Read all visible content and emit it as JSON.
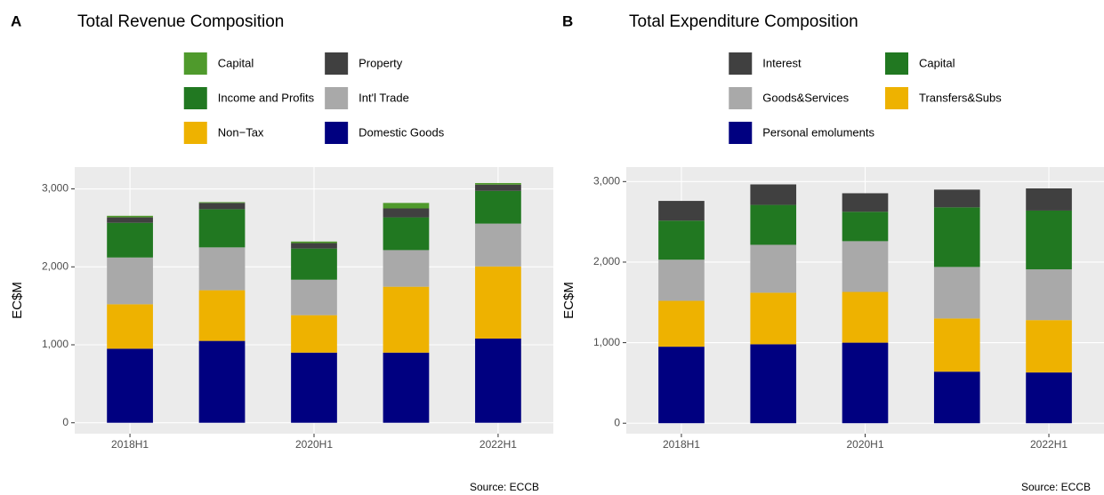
{
  "chart_data": [
    {
      "type": "bar",
      "stacked": true,
      "tag": "A",
      "title": "Total Revenue Composition",
      "ylabel": "EC$M",
      "caption": "Source: ECCB",
      "categories": [
        "2018H1",
        null,
        "2020H1",
        null,
        "2022H1"
      ],
      "series": [
        {
          "name": "Domestic Goods",
          "color": "#000080",
          "values": [
            950,
            1050,
            900,
            900,
            1080
          ]
        },
        {
          "name": "Non−Tax",
          "color": "#eeb200",
          "values": [
            570,
            650,
            480,
            845,
            925
          ]
        },
        {
          "name": "Int'l Trade",
          "color": "#a9a9a9",
          "values": [
            600,
            550,
            455,
            470,
            550
          ]
        },
        {
          "name": "Income and Profits",
          "color": "#217821",
          "values": [
            445,
            490,
            400,
            420,
            420
          ]
        },
        {
          "name": "Property",
          "color": "#404040",
          "values": [
            70,
            80,
            70,
            115,
            80
          ]
        },
        {
          "name": "Capital",
          "color": "#4f9a2c",
          "values": [
            20,
            10,
            20,
            70,
            20
          ]
        }
      ],
      "ylim": [
        -140,
        3280
      ],
      "yticks": [
        0,
        {
          "value": 1000,
          "label": "1,000"
        },
        {
          "value": 2000,
          "label": "2,000"
        },
        {
          "value": 3000,
          "label": "3,000"
        }
      ],
      "grid": true,
      "legend": "top"
    },
    {
      "type": "bar",
      "stacked": true,
      "tag": "B",
      "title": "Total Expenditure Composition",
      "ylabel": "EC$M",
      "caption": "Source: ECCB",
      "categories": [
        "2018H1",
        null,
        "2020H1",
        null,
        "2022H1"
      ],
      "series": [
        {
          "name": "Personal emoluments",
          "color": "#000080",
          "values": [
            950,
            980,
            1000,
            640,
            630
          ]
        },
        {
          "name": "Transfers&Subs",
          "color": "#eeb200",
          "values": [
            570,
            640,
            630,
            660,
            650
          ]
        },
        {
          "name": "Goods&Services",
          "color": "#a9a9a9",
          "values": [
            510,
            595,
            630,
            640,
            630
          ]
        },
        {
          "name": "Capital",
          "color": "#217821",
          "values": [
            485,
            495,
            365,
            740,
            730
          ]
        },
        {
          "name": "Interest",
          "color": "#404040",
          "values": [
            245,
            255,
            230,
            220,
            275
          ]
        }
      ],
      "ylim": [
        -130,
        3180
      ],
      "yticks": [
        0,
        {
          "value": 1000,
          "label": "1,000"
        },
        {
          "value": 2000,
          "label": "2,000"
        },
        {
          "value": 3000,
          "label": "3,000"
        }
      ],
      "grid": true,
      "legend": "top"
    }
  ]
}
